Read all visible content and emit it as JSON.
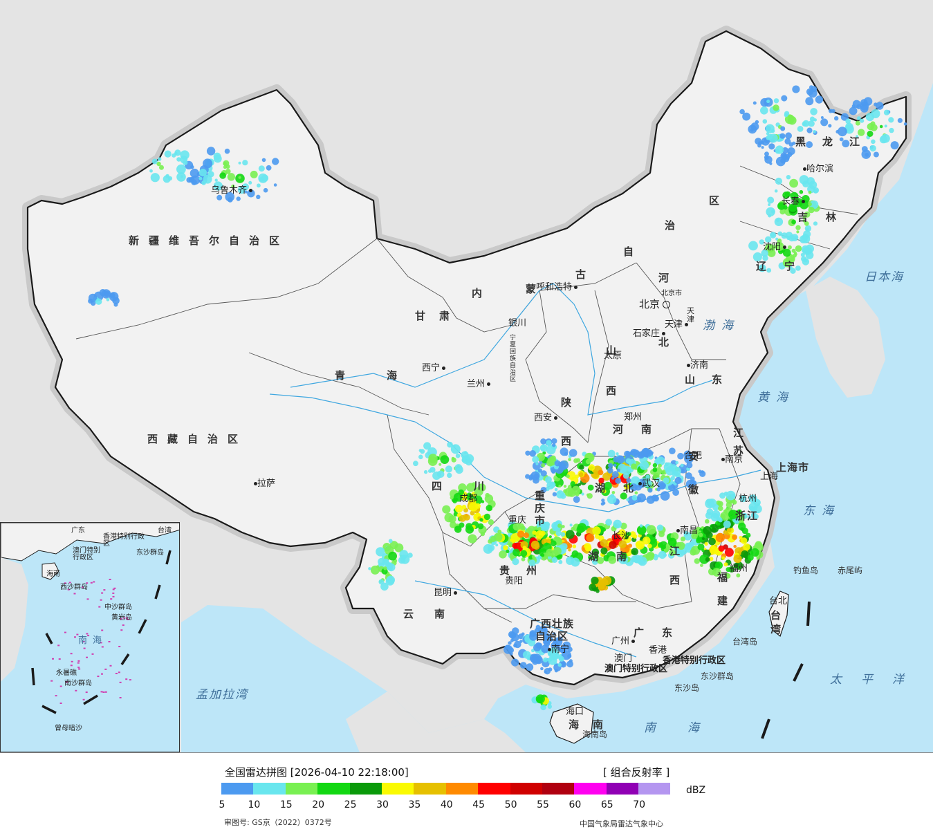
{
  "title": "全国雷达拼图 [2026-04-10 22:18:00]",
  "product": "[ 组合反射率 ]",
  "unit": "dBZ",
  "review_number": "审图号: GS京（2022）0372号",
  "agency": "中国气象局雷达气象中心",
  "legend": {
    "ticks": [
      "5",
      "10",
      "15",
      "20",
      "25",
      "30",
      "35",
      "40",
      "45",
      "50",
      "55",
      "60",
      "65",
      "70"
    ],
    "colors": [
      "#4c9af0",
      "#69e6ee",
      "#79f052",
      "#12d812",
      "#0a9a0a",
      "#fafa02",
      "#e6c000",
      "#ff8a00",
      "#ff0000",
      "#d00000",
      "#b00010",
      "#ff00f0",
      "#9000b4",
      "#b496f0"
    ]
  },
  "colors": {
    "ocean": "#bde6f8",
    "land_china": "#f2f2f2",
    "land_other": "#e4e4e4",
    "border": "#1a1a1a",
    "river": "#3fa7e0"
  },
  "provinces": [
    {
      "id": "xinjiang",
      "text": "新疆维吾尔自治区"
    },
    {
      "id": "xizang",
      "text": "西藏自治区"
    },
    {
      "id": "qinghai",
      "text": "青海"
    },
    {
      "id": "gansu",
      "text": "甘肃"
    },
    {
      "id": "neimenggu-nei",
      "text": "内"
    },
    {
      "id": "neimenggu-meng",
      "text": "蒙"
    },
    {
      "id": "neimenggu-gu",
      "text": "古"
    },
    {
      "id": "neimenggu-zi",
      "text": "自"
    },
    {
      "id": "neimenggu-zhi",
      "text": "治"
    },
    {
      "id": "neimenggu-qu",
      "text": "区"
    },
    {
      "id": "heilongjiang",
      "text": "黑龙江"
    },
    {
      "id": "jilin",
      "text": "吉林"
    },
    {
      "id": "liaoning",
      "text": "辽宁"
    },
    {
      "id": "hebei-he",
      "text": "河"
    },
    {
      "id": "hebei-bei",
      "text": "北"
    },
    {
      "id": "shanxi",
      "text": "山西"
    },
    {
      "id": "shaanxi",
      "text": "陕西"
    },
    {
      "id": "shandong",
      "text": "山东"
    },
    {
      "id": "henan",
      "text": "河南"
    },
    {
      "id": "jiangsu",
      "text": "江苏"
    },
    {
      "id": "anhui",
      "text": "安徽"
    },
    {
      "id": "hubei",
      "text": "湖北"
    },
    {
      "id": "sichuan",
      "text": "四川"
    },
    {
      "id": "chongqing",
      "text": "重庆市"
    },
    {
      "id": "hunan",
      "text": "湖南"
    },
    {
      "id": "jiangxi",
      "text": "江西"
    },
    {
      "id": "zhejiang",
      "text": "浙江"
    },
    {
      "id": "fujian",
      "text": "福建"
    },
    {
      "id": "guizhou",
      "text": "贵州"
    },
    {
      "id": "yunnan",
      "text": "云南"
    },
    {
      "id": "guangxi",
      "text": "广西壮族自治区"
    },
    {
      "id": "guangdong",
      "text": "广东"
    },
    {
      "id": "hainan",
      "text": "海南"
    },
    {
      "id": "taiwan",
      "text": "台湾"
    },
    {
      "id": "shanghai",
      "text": "上海市"
    },
    {
      "id": "ningxia",
      "text": "宁夏回族自治区"
    },
    {
      "id": "tianjin",
      "text": "天津"
    },
    {
      "id": "beijing-shi",
      "text": "北京市"
    },
    {
      "id": "hk",
      "text": "香港特别行政区"
    },
    {
      "id": "macau",
      "text": "澳门特别行政区"
    }
  ],
  "cities": [
    {
      "id": "urumqi",
      "text": "乌鲁木齐"
    },
    {
      "id": "lhasa",
      "text": "拉萨"
    },
    {
      "id": "xining",
      "text": "西宁"
    },
    {
      "id": "lanzhou",
      "text": "兰州"
    },
    {
      "id": "yinchuan",
      "text": "银川"
    },
    {
      "id": "hohhot",
      "text": "呼和浩特"
    },
    {
      "id": "harbin",
      "text": "哈尔滨"
    },
    {
      "id": "changchun",
      "text": "长春"
    },
    {
      "id": "shenyang",
      "text": "沈阳"
    },
    {
      "id": "beijing",
      "text": "北京"
    },
    {
      "id": "tianjin-c",
      "text": "天津"
    },
    {
      "id": "shijiazhuang",
      "text": "石家庄"
    },
    {
      "id": "taiyuan",
      "text": "太原"
    },
    {
      "id": "jinan",
      "text": "济南"
    },
    {
      "id": "zhengzhou",
      "text": "郑州"
    },
    {
      "id": "xian",
      "text": "西安"
    },
    {
      "id": "hefei",
      "text": "合肥"
    },
    {
      "id": "nanjing",
      "text": "南京"
    },
    {
      "id": "shanghai-c",
      "text": "上海"
    },
    {
      "id": "hangzhou",
      "text": "杭州"
    },
    {
      "id": "wuhan",
      "text": "武汉"
    },
    {
      "id": "chengdu",
      "text": "成都"
    },
    {
      "id": "chongqing-c",
      "text": "重庆"
    },
    {
      "id": "changsha",
      "text": "长沙"
    },
    {
      "id": "nanchang",
      "text": "南昌"
    },
    {
      "id": "fuzhou",
      "text": "福州"
    },
    {
      "id": "guiyang",
      "text": "贵阳"
    },
    {
      "id": "kunming",
      "text": "昆明"
    },
    {
      "id": "nanning",
      "text": "南宁"
    },
    {
      "id": "guangzhou",
      "text": "广州"
    },
    {
      "id": "macau-c",
      "text": "澳门"
    },
    {
      "id": "hongkong",
      "text": "香港"
    },
    {
      "id": "haikou",
      "text": "海口"
    },
    {
      "id": "taipei",
      "text": "台北"
    }
  ],
  "seas": [
    {
      "id": "bohai",
      "text": "渤海"
    },
    {
      "id": "huanghai",
      "text": "黄海"
    },
    {
      "id": "donghai",
      "text": "东海"
    },
    {
      "id": "nanhai",
      "text": "南海"
    },
    {
      "id": "ribenhai",
      "text": "日本海"
    },
    {
      "id": "taipingyang",
      "text": "太平洋"
    },
    {
      "id": "mengjialawan",
      "text": "孟加拉湾"
    }
  ],
  "islands": [
    {
      "id": "diaoyudao",
      "text": "钓鱼岛"
    },
    {
      "id": "chiweiyu",
      "text": "赤尾屿"
    },
    {
      "id": "taiwandao",
      "text": "台湾岛"
    },
    {
      "id": "dongshaqundao",
      "text": "东沙群岛"
    },
    {
      "id": "dongshadao",
      "text": "东沙岛"
    },
    {
      "id": "hainandao",
      "text": "海南岛"
    }
  ],
  "inset": {
    "labels": [
      "广东",
      "台湾",
      "香港特别行政区",
      "澳门特别行政区",
      "东沙群岛",
      "海南",
      "西沙群岛",
      "中沙群岛",
      "黄岩岛",
      "南海",
      "南沙群岛",
      "永暑礁",
      "曾母暗沙"
    ]
  }
}
